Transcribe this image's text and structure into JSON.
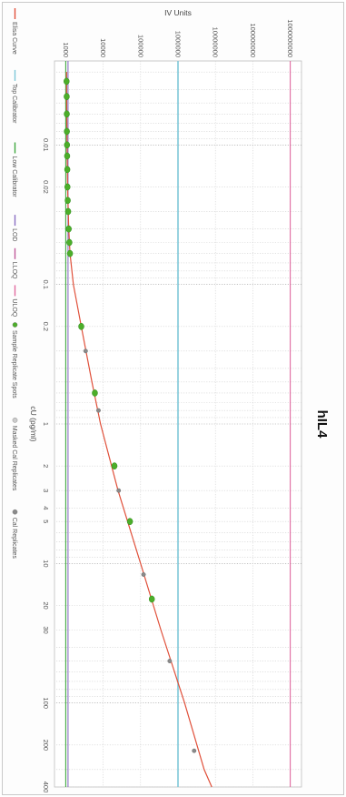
{
  "chart_data": {
    "type": "scatter",
    "title": "hIL4",
    "xlabel": "cU (pg/ml)",
    "ylabel": "IV Units",
    "x_scale": "log",
    "y_scale": "log",
    "xlim": [
      0.0025,
      400
    ],
    "ylim": [
      500,
      2000000000
    ],
    "x_ticks": [
      {
        "v": 0.01,
        "label": "0.01"
      },
      {
        "v": 0.02,
        "label": "0.02"
      },
      {
        "v": 0.1,
        "label": "0.1"
      },
      {
        "v": 0.2,
        "label": "0.2"
      },
      {
        "v": 1,
        "label": "1"
      },
      {
        "v": 2,
        "label": "2"
      },
      {
        "v": 3,
        "label": "3"
      },
      {
        "v": 4,
        "label": "4"
      },
      {
        "v": 5,
        "label": "5"
      },
      {
        "v": 10,
        "label": "10"
      },
      {
        "v": 20,
        "label": "20"
      },
      {
        "v": 30,
        "label": "30"
      },
      {
        "v": 100,
        "label": "100"
      },
      {
        "v": 200,
        "label": "200"
      },
      {
        "v": 400,
        "label": "400"
      }
    ],
    "y_ticks": [
      {
        "v": 1000,
        "label": "1000"
      },
      {
        "v": 10000,
        "label": "10000"
      },
      {
        "v": 100000,
        "label": "100000"
      },
      {
        "v": 1000000,
        "label": "1000000"
      },
      {
        "v": 10000000,
        "label": "10000000"
      },
      {
        "v": 100000000,
        "label": "100000000"
      },
      {
        "v": 1000000000,
        "label": "1000000000"
      }
    ],
    "grid": true,
    "reference_lines": [
      {
        "name": "Top Calibrator",
        "orientation": "horizontal",
        "value": 1000000,
        "color": "#7ec8d8"
      },
      {
        "name": "Low Calibrator",
        "orientation": "horizontal",
        "value": 1000,
        "color": "#3fa83f"
      },
      {
        "name": "LOD",
        "orientation": "horizontal",
        "value": 1150,
        "color": "#8a6fc2"
      },
      {
        "name": "ULOQ",
        "orientation": "horizontal",
        "value": 1000000000,
        "color": "#e06aa0"
      }
    ],
    "fit_curve": {
      "name": "Elisa Curve",
      "color": "#e0503a",
      "x": [
        0.003,
        0.005,
        0.01,
        0.02,
        0.04,
        0.06,
        0.1,
        0.2,
        0.5,
        1,
        3,
        10,
        30,
        100,
        300,
        400
      ],
      "y": [
        1050,
        1060,
        1080,
        1120,
        1200,
        1300,
        1600,
        2600,
        5000,
        8500,
        25000,
        100000,
        350000,
        1500000,
        5000000,
        8000000
      ]
    },
    "series": [
      {
        "name": "Sample Replicate Spots",
        "color": "#4cae2a",
        "x": [
          0.0035,
          0.0045,
          0.006,
          0.008,
          0.01,
          0.012,
          0.015,
          0.02,
          0.025,
          0.03,
          0.04,
          0.05,
          0.06,
          0.2,
          0.6,
          2,
          5,
          18
        ],
        "y": [
          1050,
          1060,
          1065,
          1070,
          1080,
          1090,
          1100,
          1110,
          1130,
          1160,
          1200,
          1250,
          1300,
          2600,
          6000,
          20000,
          52000,
          200000
        ]
      },
      {
        "name": "Masked Cal Replicates",
        "color": "#bbbbbb",
        "x": [],
        "y": []
      },
      {
        "name": "Cal Replicates",
        "color": "#8a8a8a",
        "x": [
          0.3,
          0.8,
          3,
          12,
          50,
          220
        ],
        "y": [
          3400,
          7500,
          26000,
          120000,
          600000,
          2700000
        ]
      }
    ],
    "legend": {
      "placement": "bottom",
      "entries": [
        {
          "label": "Elisa Curve",
          "kind": "line",
          "color": "#e0503a"
        },
        {
          "label": "Top Calibrator",
          "kind": "line",
          "color": "#7ec8d8"
        },
        {
          "label": "Low Calibrator",
          "kind": "line",
          "color": "#3fa83f"
        },
        {
          "label": "LOD",
          "kind": "line",
          "color": "#8a6fc2"
        },
        {
          "label": "LLOQ",
          "kind": "line",
          "color": "#c05a9a"
        },
        {
          "label": "ULOQ",
          "kind": "line",
          "color": "#e06aa0"
        },
        {
          "label": "Sample Replicate Spots",
          "kind": "dot",
          "color": "#4cae2a"
        },
        {
          "label": "Masked Cal Replicates",
          "kind": "dot",
          "color": "#cccccc"
        },
        {
          "label": "Cal Replicates",
          "kind": "dot",
          "color": "#8a8a8a"
        }
      ]
    }
  }
}
